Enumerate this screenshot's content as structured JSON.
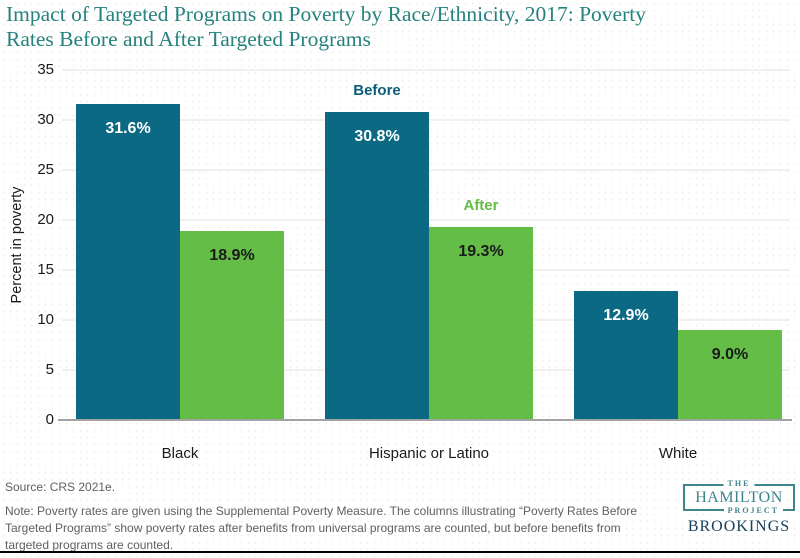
{
  "title": {
    "lines": [
      "Impact of Targeted Programs on Poverty by Race/Ethnicity, 2017: Poverty",
      "Rates Before and After Targeted Programs"
    ]
  },
  "chart_data": {
    "type": "bar",
    "title": "Impact of Targeted Programs on Poverty by Race/Ethnicity, 2017: Poverty Rates Before and After Targeted Programs",
    "categories": [
      "Black",
      "Hispanic or Latino",
      "White"
    ],
    "series": [
      {
        "name": "Before",
        "color": "#0c6983",
        "label_color": "#ffffff",
        "values": [
          31.6,
          30.8,
          12.9
        ],
        "labels": [
          "31.6%",
          "30.8%",
          "12.9%"
        ]
      },
      {
        "name": "After",
        "color": "#63bd46",
        "label_color": "#1a1a1a",
        "values": [
          18.9,
          19.3,
          9.0
        ],
        "labels": [
          "18.9%",
          "19.3%",
          "9.0%"
        ]
      }
    ],
    "xlabel": "",
    "ylabel": "Percent in poverty",
    "ylim": [
      0,
      35
    ],
    "yticks": [
      0,
      5,
      10,
      15,
      20,
      25,
      30,
      35
    ],
    "grid": true,
    "legend_position": "annotations above middle group bars",
    "annotations": [
      {
        "text": "Before",
        "color": "#0b5e7a",
        "group": 1,
        "series": 0
      },
      {
        "text": "After",
        "color": "#63bd46",
        "group": 1,
        "series": 1
      }
    ]
  },
  "footer": {
    "source": "Source: CRS 2021e.",
    "note_lines": [
      "Note: Poverty rates are given using the Supplemental Poverty Measure. The columns illustrating “Poverty Rates Before",
      "Targeted Programs” show poverty rates after benefits from universal programs are counted, but before benefits from",
      "targeted programs are counted."
    ]
  },
  "logo": {
    "the": "THE",
    "hamilton": "HAMILTON",
    "project": "PROJECT",
    "brookings": "BROOKINGS",
    "teal": "#3e858e",
    "navy": "#17405e"
  },
  "colors": {
    "title": "#26827e",
    "bar_before": "#0c6983",
    "bar_after": "#63bd46",
    "axis_text": "#1a1a1a",
    "note_text": "#5f6062",
    "gridline": "#f1f0ee",
    "baseline": "#a3a3a3",
    "bottom_rule": "#000000",
    "background": "#ffffff"
  }
}
